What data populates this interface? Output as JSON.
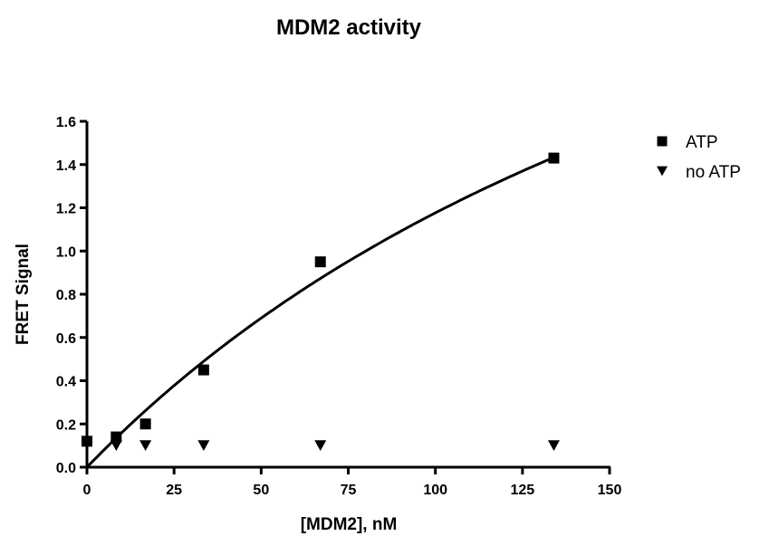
{
  "chart_data": {
    "type": "scatter",
    "title": "MDM2 activity",
    "xlabel": "[MDM2], nM",
    "ylabel": "FRET Signal",
    "xlim": [
      0,
      150
    ],
    "ylim": [
      0,
      1.6
    ],
    "xticks": [
      0,
      25,
      50,
      75,
      100,
      125,
      150
    ],
    "yticks": [
      0.0,
      0.2,
      0.4,
      0.6,
      0.8,
      1.0,
      1.2,
      1.4,
      1.6
    ],
    "xtick_labels": [
      "0",
      "25",
      "50",
      "75",
      "100",
      "125",
      "150"
    ],
    "ytick_labels": [
      "0.0",
      "0.2",
      "0.4",
      "0.6",
      "0.8",
      "1.0",
      "1.2",
      "1.4",
      "1.6"
    ],
    "grid": false,
    "legend_position": "top-right",
    "series": [
      {
        "name": "ATP",
        "marker": "square",
        "color": "#000000",
        "x": [
          0,
          8.4,
          16.8,
          33.5,
          67,
          134
        ],
        "y": [
          0.12,
          0.14,
          0.2,
          0.45,
          0.95,
          1.43
        ],
        "fit": {
          "model": "hyperbola",
          "bmax": 4.0,
          "kd": 240,
          "x_range": [
            0,
            134
          ]
        }
      },
      {
        "name": "no ATP",
        "marker": "triangle-down",
        "color": "#000000",
        "x": [
          0,
          8.4,
          16.8,
          33.5,
          67,
          134
        ],
        "y": [
          0.12,
          0.1,
          0.1,
          0.1,
          0.1,
          0.1
        ]
      }
    ]
  }
}
